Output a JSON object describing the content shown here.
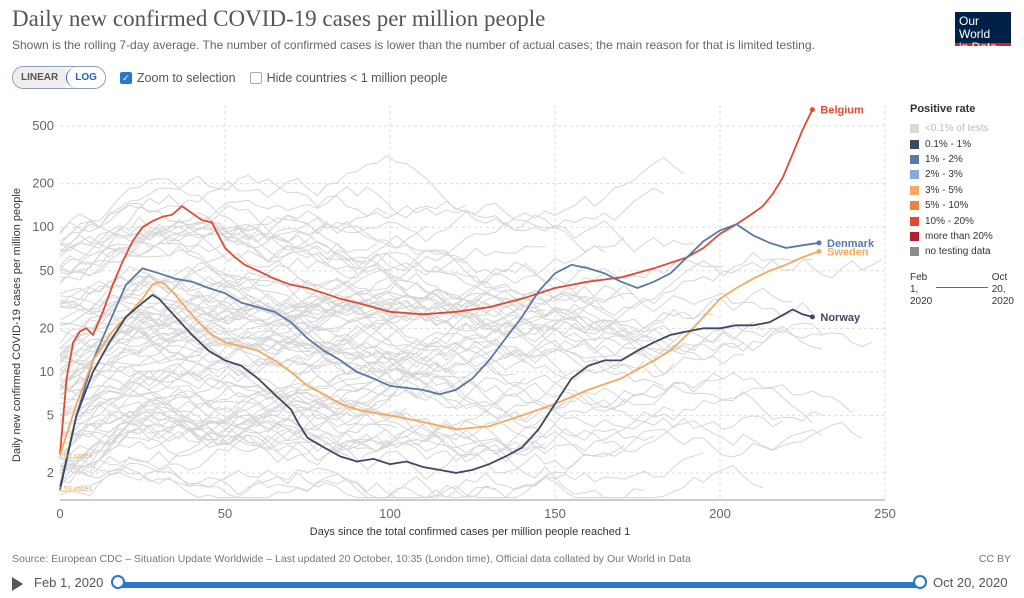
{
  "header": {
    "title": "Daily new confirmed COVID-19 cases per million people",
    "subtitle": "Shown is the rolling 7-day average. The number of confirmed cases is lower than the number of actual cases; the main reason for that is limited testing.",
    "logo_line1": "Our World",
    "logo_line2": "in Data"
  },
  "controls": {
    "linear_label": "LINEAR",
    "log_label": "LOG",
    "zoom_label": "Zoom to selection",
    "zoom_checked": true,
    "hide_label": "Hide countries < 1 million people",
    "hide_checked": false
  },
  "legend": {
    "title": "Positive rate",
    "items": [
      {
        "label": "<0.1% of tests",
        "color": "#d9d9d9",
        "dim": true
      },
      {
        "label": "0.1% - 1%",
        "color": "#3b4a63"
      },
      {
        "label": "1% - 2%",
        "color": "#5a78a8"
      },
      {
        "label": "2% - 3%",
        "color": "#89a8dc"
      },
      {
        "label": "3% - 5%",
        "color": "#f4a95c"
      },
      {
        "label": "5% - 10%",
        "color": "#ec8144"
      },
      {
        "label": "10% - 20%",
        "color": "#df4a32"
      },
      {
        "label": "more than 20%",
        "color": "#b41f2c"
      },
      {
        "label": "no testing data",
        "color": "#8c8c8c"
      }
    ],
    "mini_start": "Feb 1, 2020",
    "mini_start_l1": "Feb",
    "mini_start_l2": "1,",
    "mini_start_l3": "2020",
    "mini_end_l1": "Oct",
    "mini_end_l2": "20,",
    "mini_end_l3": "2020"
  },
  "chart_data": {
    "type": "line",
    "title": "Daily new confirmed COVID-19 cases per million people",
    "xlabel": "Days since the total confirmed cases per million people reached 1",
    "ylabel": "Daily new confirmed COVID-19 cases per million people",
    "xlim": [
      0,
      250
    ],
    "ylim": [
      1.3,
      700
    ],
    "yscale": "log",
    "xticks": [
      0,
      50,
      100,
      150,
      200,
      250
    ],
    "yticks": [
      2,
      5,
      10,
      20,
      50,
      100,
      200,
      500
    ],
    "grid": true,
    "annotations": [
      "2.66 cases",
      "1.53 cases"
    ],
    "series": [
      {
        "name": "Belgium",
        "color": "#df4a32",
        "points": [
          [
            0,
            2.7
          ],
          [
            2,
            9
          ],
          [
            4,
            16
          ],
          [
            6,
            19
          ],
          [
            8,
            20
          ],
          [
            10,
            18
          ],
          [
            13,
            26
          ],
          [
            16,
            40
          ],
          [
            19,
            58
          ],
          [
            22,
            80
          ],
          [
            25,
            100
          ],
          [
            28,
            110
          ],
          [
            31,
            118
          ],
          [
            34,
            122
          ],
          [
            37,
            140
          ],
          [
            40,
            125
          ],
          [
            43,
            112
          ],
          [
            46,
            108
          ],
          [
            50,
            72
          ],
          [
            53,
            62
          ],
          [
            56,
            55
          ],
          [
            60,
            50
          ],
          [
            65,
            44
          ],
          [
            70,
            40
          ],
          [
            75,
            38
          ],
          [
            80,
            35
          ],
          [
            85,
            32
          ],
          [
            90,
            30
          ],
          [
            95,
            28
          ],
          [
            100,
            26
          ],
          [
            110,
            25
          ],
          [
            120,
            26
          ],
          [
            130,
            28
          ],
          [
            140,
            32
          ],
          [
            150,
            38
          ],
          [
            160,
            42
          ],
          [
            170,
            45
          ],
          [
            180,
            52
          ],
          [
            190,
            62
          ],
          [
            195,
            72
          ],
          [
            200,
            90
          ],
          [
            205,
            105
          ],
          [
            210,
            125
          ],
          [
            213,
            140
          ],
          [
            216,
            170
          ],
          [
            219,
            220
          ],
          [
            222,
            320
          ],
          [
            225,
            470
          ],
          [
            228,
            650
          ]
        ]
      },
      {
        "name": "Denmark",
        "color": "#5a78a8",
        "points": [
          [
            0,
            1.6
          ],
          [
            5,
            5
          ],
          [
            10,
            12
          ],
          [
            15,
            22
          ],
          [
            20,
            40
          ],
          [
            25,
            52
          ],
          [
            30,
            48
          ],
          [
            35,
            44
          ],
          [
            40,
            42
          ],
          [
            45,
            38
          ],
          [
            50,
            35
          ],
          [
            55,
            30
          ],
          [
            60,
            28
          ],
          [
            65,
            26
          ],
          [
            70,
            22
          ],
          [
            75,
            17
          ],
          [
            80,
            14
          ],
          [
            85,
            12
          ],
          [
            90,
            10
          ],
          [
            95,
            9
          ],
          [
            100,
            8
          ],
          [
            110,
            7.5
          ],
          [
            115,
            7
          ],
          [
            120,
            7.5
          ],
          [
            125,
            9
          ],
          [
            130,
            12
          ],
          [
            135,
            17
          ],
          [
            140,
            24
          ],
          [
            145,
            36
          ],
          [
            150,
            48
          ],
          [
            155,
            55
          ],
          [
            160,
            52
          ],
          [
            165,
            48
          ],
          [
            170,
            42
          ],
          [
            175,
            38
          ],
          [
            180,
            42
          ],
          [
            185,
            48
          ],
          [
            190,
            62
          ],
          [
            195,
            80
          ],
          [
            200,
            95
          ],
          [
            205,
            105
          ],
          [
            210,
            88
          ],
          [
            215,
            78
          ],
          [
            220,
            72
          ],
          [
            225,
            75
          ],
          [
            230,
            78
          ]
        ]
      },
      {
        "name": "Sweden",
        "color": "#f4a95c",
        "points": [
          [
            0,
            2.66
          ],
          [
            5,
            6
          ],
          [
            10,
            12
          ],
          [
            15,
            18
          ],
          [
            20,
            24
          ],
          [
            25,
            32
          ],
          [
            28,
            40
          ],
          [
            30,
            42
          ],
          [
            32,
            40
          ],
          [
            35,
            34
          ],
          [
            38,
            28
          ],
          [
            42,
            22
          ],
          [
            46,
            18
          ],
          [
            50,
            16
          ],
          [
            55,
            15
          ],
          [
            60,
            14
          ],
          [
            65,
            12
          ],
          [
            70,
            10
          ],
          [
            75,
            8
          ],
          [
            80,
            7
          ],
          [
            85,
            6
          ],
          [
            90,
            5.5
          ],
          [
            95,
            5.2
          ],
          [
            100,
            5
          ],
          [
            110,
            4.5
          ],
          [
            120,
            4
          ],
          [
            130,
            4.2
          ],
          [
            140,
            5
          ],
          [
            150,
            6
          ],
          [
            160,
            7.5
          ],
          [
            170,
            9
          ],
          [
            180,
            12
          ],
          [
            185,
            14
          ],
          [
            190,
            18
          ],
          [
            195,
            24
          ],
          [
            200,
            32
          ],
          [
            205,
            38
          ],
          [
            210,
            44
          ],
          [
            215,
            50
          ],
          [
            220,
            55
          ],
          [
            225,
            62
          ],
          [
            230,
            68
          ]
        ]
      },
      {
        "name": "Norway",
        "color": "#3b4a63",
        "points": [
          [
            0,
            1.53
          ],
          [
            5,
            5
          ],
          [
            10,
            10
          ],
          [
            15,
            16
          ],
          [
            20,
            24
          ],
          [
            25,
            30
          ],
          [
            28,
            34
          ],
          [
            30,
            32
          ],
          [
            35,
            24
          ],
          [
            40,
            18
          ],
          [
            45,
            14
          ],
          [
            50,
            12
          ],
          [
            55,
            11
          ],
          [
            60,
            9
          ],
          [
            65,
            7
          ],
          [
            70,
            5.5
          ],
          [
            72,
            4.5
          ],
          [
            75,
            3.5
          ],
          [
            80,
            3
          ],
          [
            85,
            2.6
          ],
          [
            90,
            2.4
          ],
          [
            95,
            2.5
          ],
          [
            100,
            2.3
          ],
          [
            105,
            2.4
          ],
          [
            110,
            2.2
          ],
          [
            115,
            2.1
          ],
          [
            120,
            2
          ],
          [
            125,
            2.1
          ],
          [
            130,
            2.3
          ],
          [
            135,
            2.6
          ],
          [
            140,
            3
          ],
          [
            145,
            4
          ],
          [
            150,
            6
          ],
          [
            155,
            9
          ],
          [
            160,
            11
          ],
          [
            165,
            12
          ],
          [
            170,
            12
          ],
          [
            175,
            14
          ],
          [
            180,
            16
          ],
          [
            185,
            18
          ],
          [
            190,
            19
          ],
          [
            195,
            20
          ],
          [
            200,
            20
          ],
          [
            205,
            21
          ],
          [
            210,
            21
          ],
          [
            215,
            22
          ],
          [
            218,
            24
          ],
          [
            222,
            27
          ],
          [
            225,
            25
          ],
          [
            228,
            24
          ]
        ]
      }
    ],
    "label_Belgium": "Belgium",
    "label_Denmark": "Denmark",
    "label_Sweden": "Sweden",
    "label_Norway": "Norway"
  },
  "footer": {
    "source": "Source: European CDC – Situation Update Worldwide – Last updated 20 October, 10:35 (London time), Official data collated by Our World in Data",
    "license": "CC BY"
  },
  "timeline": {
    "start": "Feb 1, 2020",
    "end": "Oct 20, 2020"
  }
}
